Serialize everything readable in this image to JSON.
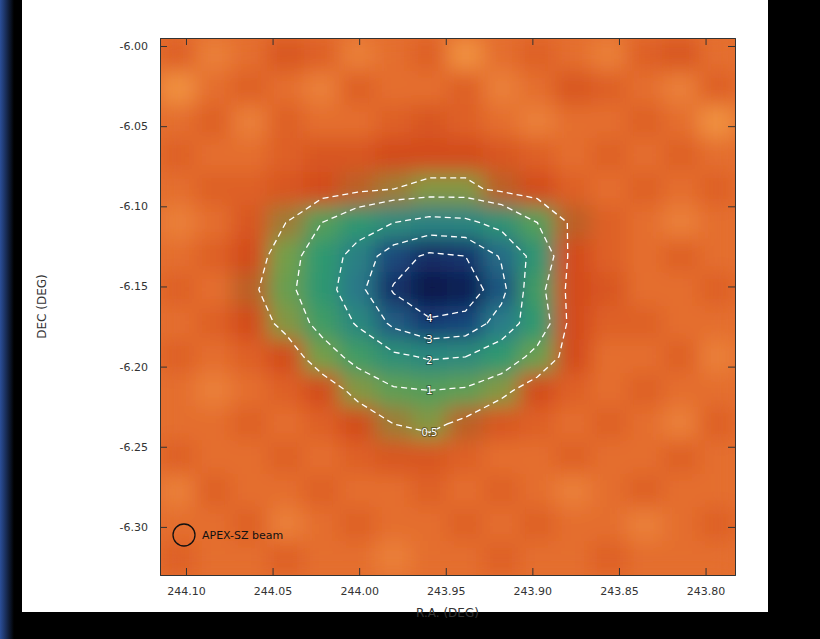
{
  "chart_data": {
    "type": "heatmap",
    "x_label": "R.A. (DEG)",
    "y_label": "DEC (DEG)",
    "annotation": "APEX-SZ beam",
    "xlim": [
      244.115,
      243.783
    ],
    "ylim": [
      -6.33,
      -5.995
    ],
    "xticks": [
      {
        "value": 244.1,
        "label": "244.10"
      },
      244.05,
      {
        "value": 244.0,
        "label": "244.00"
      },
      243.95,
      {
        "value": 243.9,
        "label": "243.90"
      },
      243.85,
      {
        "value": 243.8,
        "label": "243.80"
      }
    ],
    "yticks": [
      {
        "value": -6.3,
        "label": "-6.30"
      },
      -6.25,
      {
        "value": -6.2,
        "label": "-6.20"
      },
      -6.15,
      {
        "value": -6.1,
        "label": "-6.10"
      },
      -6.05,
      {
        "value": -6.0,
        "label": "-6.00"
      }
    ],
    "cells": [
      [
        0.1,
        -0.1,
        0.0,
        0.2,
        0.1,
        -0.1,
        0.0,
        0.1,
        -0.2,
        0.0,
        0.1,
        0.0,
        -0.1,
        0.1,
        0.2,
        0.0
      ],
      [
        -0.2,
        0.0,
        0.1,
        0.0,
        -0.1,
        0.1,
        0.0,
        0.0,
        0.1,
        -0.1,
        0.0,
        0.2,
        0.1,
        0.0,
        -0.1,
        0.1
      ],
      [
        0.0,
        0.1,
        -0.1,
        0.1,
        0.0,
        0.0,
        0.1,
        0.2,
        0.1,
        0.0,
        -0.1,
        0.0,
        0.0,
        0.1,
        0.0,
        -0.2
      ],
      [
        0.1,
        0.0,
        0.0,
        0.1,
        0.2,
        0.2,
        0.3,
        0.3,
        0.3,
        0.2,
        0.1,
        0.0,
        0.1,
        0.0,
        0.1,
        0.0
      ],
      [
        0.0,
        0.1,
        0.1,
        0.2,
        0.3,
        0.4,
        0.5,
        0.6,
        0.6,
        0.4,
        0.3,
        0.1,
        0.0,
        0.1,
        0.0,
        0.1
      ],
      [
        -0.1,
        0.0,
        0.2,
        0.5,
        1.0,
        1.5,
        2.0,
        2.3,
        2.2,
        1.7,
        1.0,
        0.4,
        0.1,
        0.0,
        -0.1,
        0.0
      ],
      [
        0.0,
        0.1,
        0.3,
        0.7,
        1.4,
        2.4,
        3.5,
        4.2,
        4.0,
        2.9,
        1.6,
        0.3,
        0.1,
        0.0,
        0.1,
        0.0
      ],
      [
        0.1,
        0.0,
        0.4,
        0.8,
        1.5,
        2.7,
        4.1,
        5.0,
        4.7,
        3.3,
        1.2,
        0.3,
        0.2,
        0.0,
        0.0,
        0.1
      ],
      [
        0.0,
        0.1,
        0.3,
        0.6,
        1.2,
        2.1,
        3.2,
        3.8,
        3.6,
        2.6,
        1.4,
        0.3,
        0.1,
        0.1,
        0.0,
        0.0
      ],
      [
        0.1,
        0.0,
        0.1,
        0.3,
        0.7,
        1.2,
        1.8,
        2.1,
        2.0,
        1.4,
        0.8,
        0.3,
        0.0,
        0.0,
        0.1,
        -0.1
      ],
      [
        0.0,
        -0.1,
        0.0,
        0.1,
        0.3,
        0.6,
        0.9,
        1.0,
        0.9,
        0.6,
        0.3,
        0.1,
        0.0,
        0.1,
        0.0,
        0.0
      ],
      [
        0.0,
        0.0,
        0.1,
        0.0,
        0.1,
        0.3,
        0.5,
        0.6,
        0.4,
        0.2,
        0.1,
        0.0,
        0.1,
        0.0,
        -0.1,
        0.1
      ],
      [
        0.1,
        0.0,
        0.0,
        0.1,
        0.0,
        0.1,
        0.2,
        0.2,
        0.1,
        0.0,
        0.0,
        0.1,
        0.0,
        0.0,
        0.1,
        0.0
      ],
      [
        -0.1,
        0.1,
        0.0,
        0.0,
        0.1,
        0.0,
        0.0,
        0.1,
        0.0,
        0.1,
        0.0,
        -0.1,
        0.0,
        0.1,
        0.0,
        0.0
      ],
      [
        0.0,
        0.0,
        0.1,
        -0.1,
        0.0,
        0.1,
        0.0,
        0.0,
        0.1,
        0.0,
        0.1,
        0.0,
        0.0,
        -0.1,
        0.0,
        0.1
      ],
      [
        0.1,
        0.0,
        0.0,
        0.1,
        0.0,
        0.0,
        -0.1,
        0.0,
        0.0,
        0.1,
        0.0,
        0.0,
        0.1,
        0.0,
        0.0,
        0.0
      ]
    ],
    "contour_levels": [
      0.5,
      1,
      2,
      3,
      4
    ],
    "line_style": "dashed",
    "color": "#ffffff"
  }
}
